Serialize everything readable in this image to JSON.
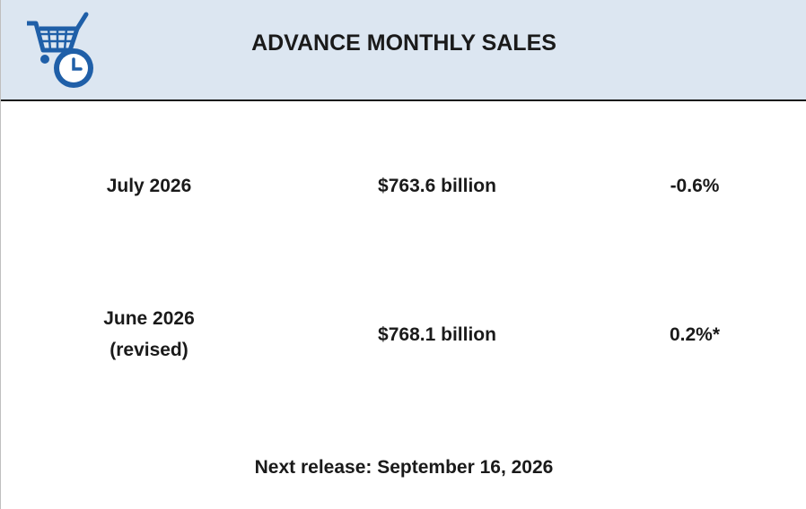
{
  "header": {
    "title": "ADVANCE MONTHLY SALES"
  },
  "rows": [
    {
      "period": [
        "July 2026"
      ],
      "value": "$763.6 billion",
      "change": "-0.6%"
    },
    {
      "period": [
        "June 2026",
        "(revised)"
      ],
      "value": "$768.1 billion",
      "change": "0.2%*"
    }
  ],
  "footer": "Next release: September 16, 2026"
}
